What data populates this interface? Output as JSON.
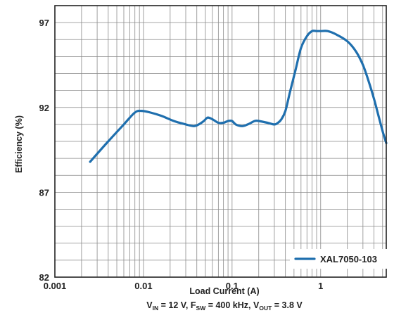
{
  "chart_data": {
    "type": "line",
    "xscale": "log",
    "xlim": [
      0.001,
      5.5
    ],
    "ylim": [
      82,
      98
    ],
    "xticks": [
      0.001,
      0.01,
      0.1,
      1
    ],
    "xtick_labels": [
      "0.001",
      "0.01",
      "0.1",
      "1"
    ],
    "yticks": [
      82,
      87,
      92,
      97
    ],
    "ytick_labels": [
      "82",
      "87",
      "92",
      "97"
    ],
    "ylabel": "Efficiency (%)",
    "xlabel": "Load Current (A)",
    "conditions": {
      "vin": {
        "main": "V",
        "sub": "IN",
        "rest": " = 12 V, "
      },
      "fsw": {
        "main": "F",
        "sub": "SW",
        "rest": " = 400 kHz, "
      },
      "vout": {
        "main": "V",
        "sub": "OUT",
        "rest": " = 3.8 V"
      }
    },
    "legend_position": "bottom-right",
    "grid": true,
    "series": [
      {
        "name": "XAL7050-103",
        "color": "#1f6fae",
        "x": [
          0.0025,
          0.004,
          0.006,
          0.008,
          0.0095,
          0.012,
          0.016,
          0.022,
          0.03,
          0.037,
          0.042,
          0.048,
          0.053,
          0.06,
          0.07,
          0.08,
          0.09,
          0.1,
          0.11,
          0.13,
          0.15,
          0.18,
          0.2,
          0.25,
          0.3,
          0.33,
          0.36,
          0.4,
          0.45,
          0.52,
          0.6,
          0.7,
          0.8,
          0.9,
          1.0,
          1.2,
          1.5,
          2.0,
          2.5,
          3.0,
          3.5,
          4.0,
          4.5,
          5.0,
          5.5
        ],
        "y": [
          88.8,
          90.0,
          91.0,
          91.7,
          91.8,
          91.7,
          91.5,
          91.2,
          91.0,
          90.9,
          91.0,
          91.2,
          91.4,
          91.3,
          91.1,
          91.1,
          91.2,
          91.2,
          91.0,
          90.9,
          91.0,
          91.2,
          91.2,
          91.1,
          91.0,
          91.1,
          91.3,
          91.8,
          92.9,
          94.2,
          95.5,
          96.2,
          96.5,
          96.5,
          96.5,
          96.5,
          96.3,
          95.9,
          95.3,
          94.5,
          93.5,
          92.5,
          91.5,
          90.6,
          89.9
        ]
      }
    ]
  }
}
